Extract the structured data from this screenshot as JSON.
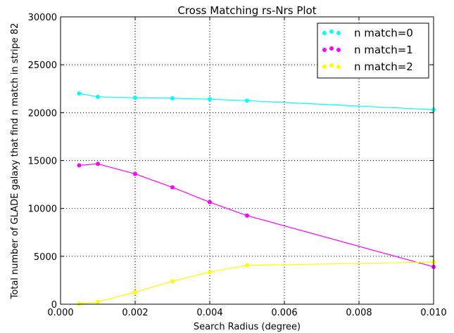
{
  "chart_data": {
    "type": "line",
    "title": "Cross Matching rs-Nrs Plot",
    "xlabel": "Search Radius (degree)",
    "ylabel": "Total number of GLADE galaxy that find n match in stripe 82",
    "xlim": [
      0,
      0.01
    ],
    "ylim": [
      0,
      30000
    ],
    "xticks": [
      "0.000",
      "0.002",
      "0.004",
      "0.006",
      "0.008",
      "0.010"
    ],
    "yticks": [
      "0",
      "5000",
      "10000",
      "15000",
      "20000",
      "25000",
      "30000"
    ],
    "grid": true,
    "legend_position": "top-right",
    "x": [
      0.0005,
      0.001,
      0.002,
      0.003,
      0.004,
      0.005,
      0.01
    ],
    "series": [
      {
        "name": "n match=0",
        "color": "#00ffff",
        "values": [
          22000,
          21650,
          21550,
          21500,
          21400,
          21250,
          20300
        ]
      },
      {
        "name": "n match=1",
        "color": "#ff00ff",
        "values": [
          14500,
          14650,
          13600,
          12200,
          10650,
          9250,
          3900
        ]
      },
      {
        "name": "n match=2",
        "color": "#ffff00",
        "values": [
          50,
          250,
          1250,
          2400,
          3350,
          4050,
          4400
        ]
      }
    ]
  }
}
